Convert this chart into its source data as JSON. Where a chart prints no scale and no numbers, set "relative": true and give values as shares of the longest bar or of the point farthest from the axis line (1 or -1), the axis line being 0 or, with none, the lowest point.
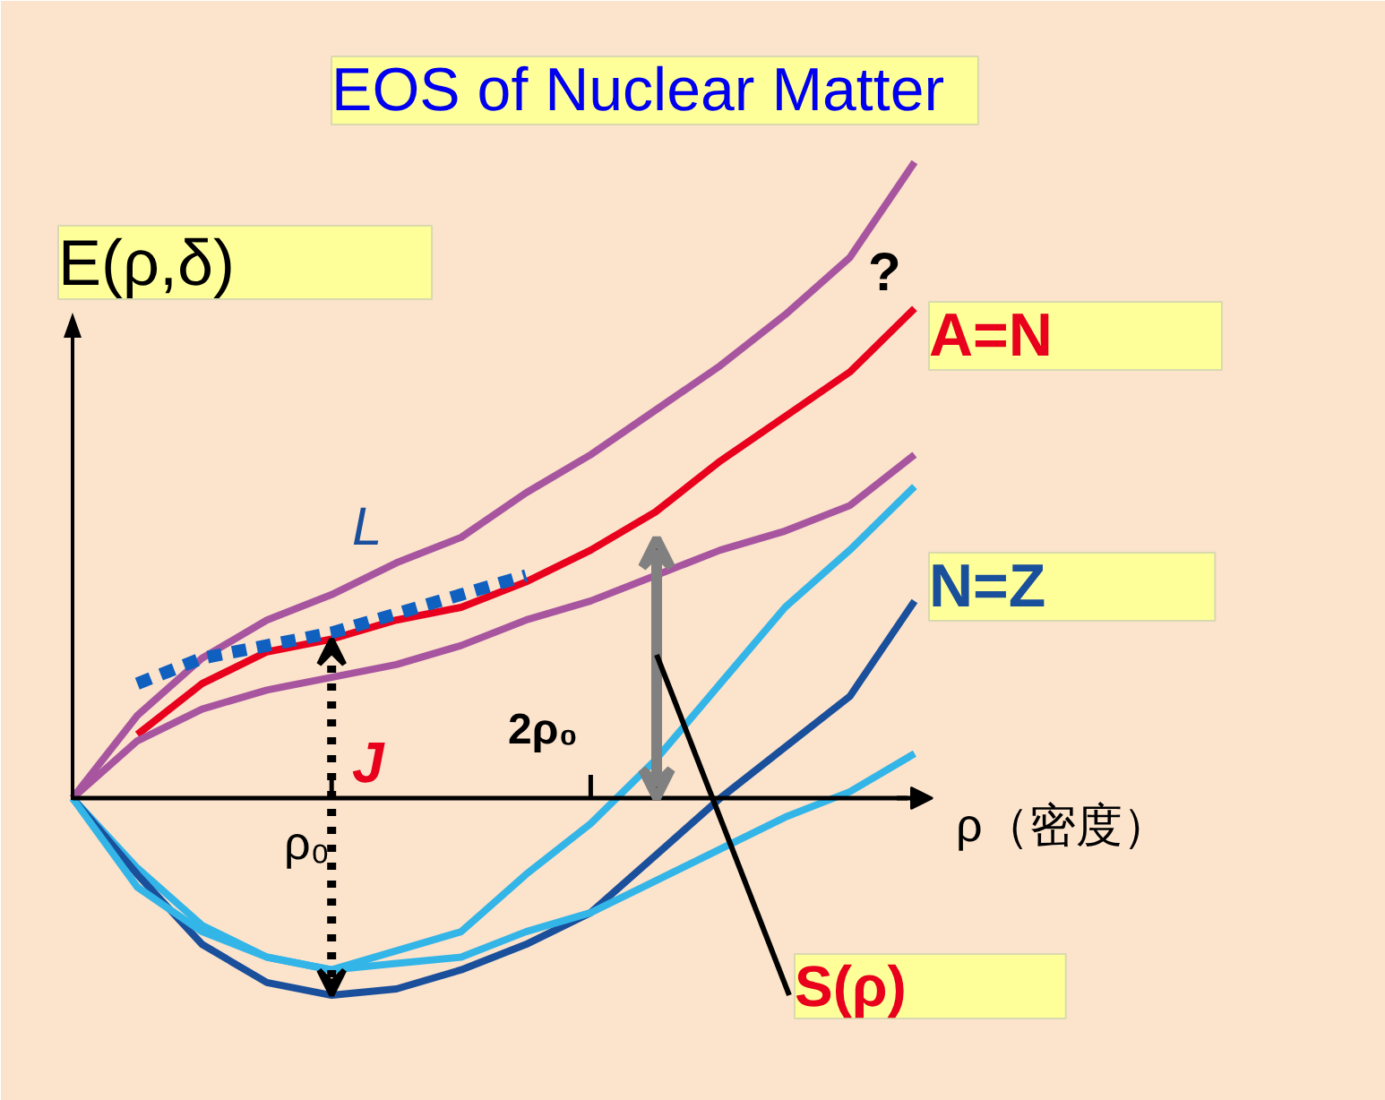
{
  "chart_data": {
    "type": "line",
    "title": "EOS of Nuclear Matter",
    "xlabel": "ρ（密度）",
    "ylabel": "E(ρ,δ)",
    "relative": true,
    "categories": [
      null,
      null,
      null,
      null,
      null,
      null,
      null,
      null,
      null,
      null,
      null,
      null,
      null,
      null
    ],
    "grid": false,
    "marker": "none",
    "line_style": "solid",
    "series": [
      {
        "color": "#a855a0",
        "values": [
          0,
          0.13,
          0.22,
          0.28,
          0.32,
          0.37,
          0.41,
          0.48,
          0.54,
          0.61,
          0.68,
          0.76,
          0.85,
          1.0
        ]
      },
      {
        "name": "A=N",
        "color": "#e8001c",
        "values": [
          null,
          0.1,
          0.18,
          0.23,
          0.25,
          0.28,
          0.3,
          0.34,
          0.39,
          0.45,
          0.53,
          0.6,
          0.67,
          0.77
        ]
      },
      {
        "color": "#a855a0",
        "values": [
          0,
          0.09,
          0.14,
          0.17,
          0.19,
          0.21,
          0.24,
          0.28,
          0.31,
          0.35,
          0.39,
          0.42,
          0.46,
          0.54
        ]
      },
      {
        "color": "#33b5e8",
        "values": [
          0,
          -0.11,
          -0.2,
          -0.25,
          -0.27,
          -0.24,
          -0.21,
          -0.12,
          -0.04,
          0.06,
          0.18,
          0.3,
          0.39,
          0.49
        ]
      },
      {
        "name": "N=Z",
        "color": "#1a4f9c",
        "values": [
          0,
          -0.12,
          -0.23,
          -0.29,
          -0.31,
          -0.3,
          -0.27,
          -0.23,
          -0.18,
          -0.09,
          0,
          0.08,
          0.16,
          0.31
        ]
      },
      {
        "color": "#33b5e8",
        "values": [
          0,
          -0.14,
          -0.21,
          -0.25,
          -0.27,
          -0.26,
          -0.25,
          -0.21,
          -0.18,
          -0.13,
          -0.08,
          -0.03,
          0.01,
          0.07
        ]
      },
      {
        "color": "#1060c0",
        "line_style": "dashed",
        "values": [
          null,
          0.18,
          0.22,
          0.24,
          0.26,
          0.29,
          0.32,
          0.35,
          null,
          null,
          null,
          null,
          null,
          null
        ]
      }
    ],
    "annotations": [
      "L",
      "J",
      "?",
      "S(ρ)",
      "ρ₀",
      "2ρ₀"
    ]
  }
}
